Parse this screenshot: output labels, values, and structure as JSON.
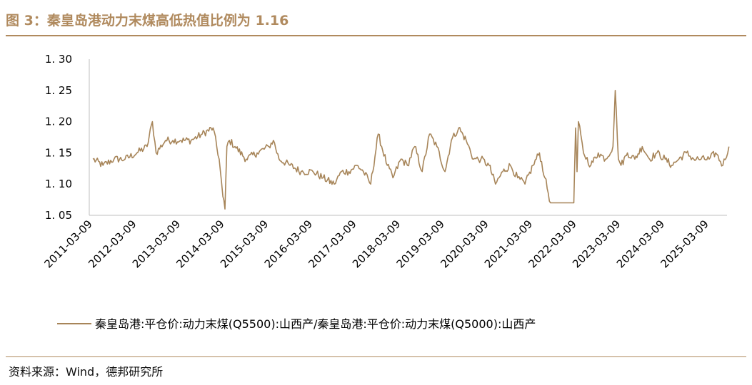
{
  "title": "图 3：秦皇岛港动力末煤高低热值比例为 1.16",
  "source": "资料来源：Wind，德邦研究所",
  "colors": {
    "accent": "#B08A5E",
    "line": "#A78559",
    "axis": "#BFBFBF",
    "text": "#000000"
  },
  "chart_data": {
    "type": "line",
    "title": "",
    "xlabel": "",
    "ylabel": "",
    "ylim": [
      1.05,
      1.3
    ],
    "grid": false,
    "legend_position": "bottom",
    "y_ticks": [
      "1. 30",
      "1. 25",
      "1. 20",
      "1. 15",
      "1. 10",
      "1. 05"
    ],
    "y_tick_values": [
      1.3,
      1.25,
      1.2,
      1.15,
      1.1,
      1.05
    ],
    "x_ticks": [
      "2011-03-09",
      "2012-03-09",
      "2013-03-09",
      "2014-03-09",
      "2015-03-09",
      "2016-03-09",
      "2017-03-09",
      "2018-03-09",
      "2019-03-09",
      "2020-03-09",
      "2021-03-09",
      "2022-03-09",
      "2023-03-09",
      "2024-03-09",
      "2025-03-09"
    ],
    "series": [
      {
        "name": "秦皇岛港:平仓价:动力末煤(Q5500):山西产/秦皇岛港:平仓价:动力末煤(Q5000):山西产",
        "x": [
          "2011-03-09",
          "2011-06-01",
          "2011-09-01",
          "2011-12-01",
          "2012-03-09",
          "2012-06-01",
          "2012-07-15",
          "2012-08-15",
          "2012-11-01",
          "2013-01-01",
          "2013-03-09",
          "2013-06-01",
          "2013-09-01",
          "2013-12-01",
          "2014-01-20",
          "2014-02-20",
          "2014-03-09",
          "2014-03-25",
          "2014-04-15",
          "2014-06-01",
          "2014-09-01",
          "2014-12-01",
          "2015-03-09",
          "2015-04-15",
          "2015-06-01",
          "2015-09-01",
          "2015-12-01",
          "2016-03-09",
          "2016-06-01",
          "2016-09-01",
          "2016-11-01",
          "2017-01-01",
          "2017-03-09",
          "2017-05-01",
          "2017-07-01",
          "2017-09-01",
          "2017-11-15",
          "2018-01-01",
          "2018-03-09",
          "2018-05-01",
          "2018-07-01",
          "2018-09-01",
          "2018-11-01",
          "2019-01-01",
          "2019-03-09",
          "2019-05-01",
          "2019-07-01",
          "2019-09-01",
          "2019-11-01",
          "2020-01-01",
          "2020-03-09",
          "2020-05-01",
          "2020-07-01",
          "2020-09-01",
          "2020-11-01",
          "2021-01-01",
          "2021-03-09",
          "2021-05-01",
          "2021-06-15",
          "2021-08-01",
          "2021-09-20",
          "2021-10-15",
          "2021-12-01",
          "2022-01-15",
          "2022-02-10",
          "2022-02-25",
          "2022-03-09",
          "2022-03-20",
          "2022-05-01",
          "2022-07-01",
          "2022-09-01",
          "2022-11-01",
          "2023-01-01",
          "2023-01-20",
          "2023-02-15",
          "2023-03-09",
          "2023-05-01",
          "2023-07-01",
          "2023-09-01",
          "2023-11-01",
          "2024-01-01",
          "2024-03-09",
          "2024-05-01",
          "2024-07-01",
          "2024-09-01",
          "2024-11-01",
          "2025-01-01",
          "2025-03-09",
          "2025-05-01",
          "2025-07-01",
          "2025-08-20"
        ],
        "y": [
          1.14,
          1.13,
          1.14,
          1.14,
          1.15,
          1.16,
          1.2,
          1.15,
          1.17,
          1.17,
          1.17,
          1.17,
          1.18,
          1.19,
          1.14,
          1.08,
          1.06,
          1.16,
          1.17,
          1.16,
          1.14,
          1.15,
          1.16,
          1.17,
          1.14,
          1.13,
          1.12,
          1.12,
          1.11,
          1.1,
          1.12,
          1.12,
          1.13,
          1.12,
          1.1,
          1.18,
          1.13,
          1.11,
          1.14,
          1.13,
          1.16,
          1.12,
          1.18,
          1.16,
          1.12,
          1.17,
          1.19,
          1.17,
          1.14,
          1.14,
          1.13,
          1.1,
          1.12,
          1.13,
          1.11,
          1.1,
          1.13,
          1.15,
          1.11,
          1.07,
          1.07,
          1.07,
          1.07,
          1.07,
          1.07,
          1.19,
          1.12,
          1.2,
          1.15,
          1.13,
          1.15,
          1.14,
          1.16,
          1.25,
          1.14,
          1.13,
          1.15,
          1.14,
          1.16,
          1.14,
          1.15,
          1.14,
          1.13,
          1.14,
          1.15,
          1.14,
          1.14,
          1.14,
          1.15,
          1.13,
          1.16
        ]
      }
    ]
  }
}
